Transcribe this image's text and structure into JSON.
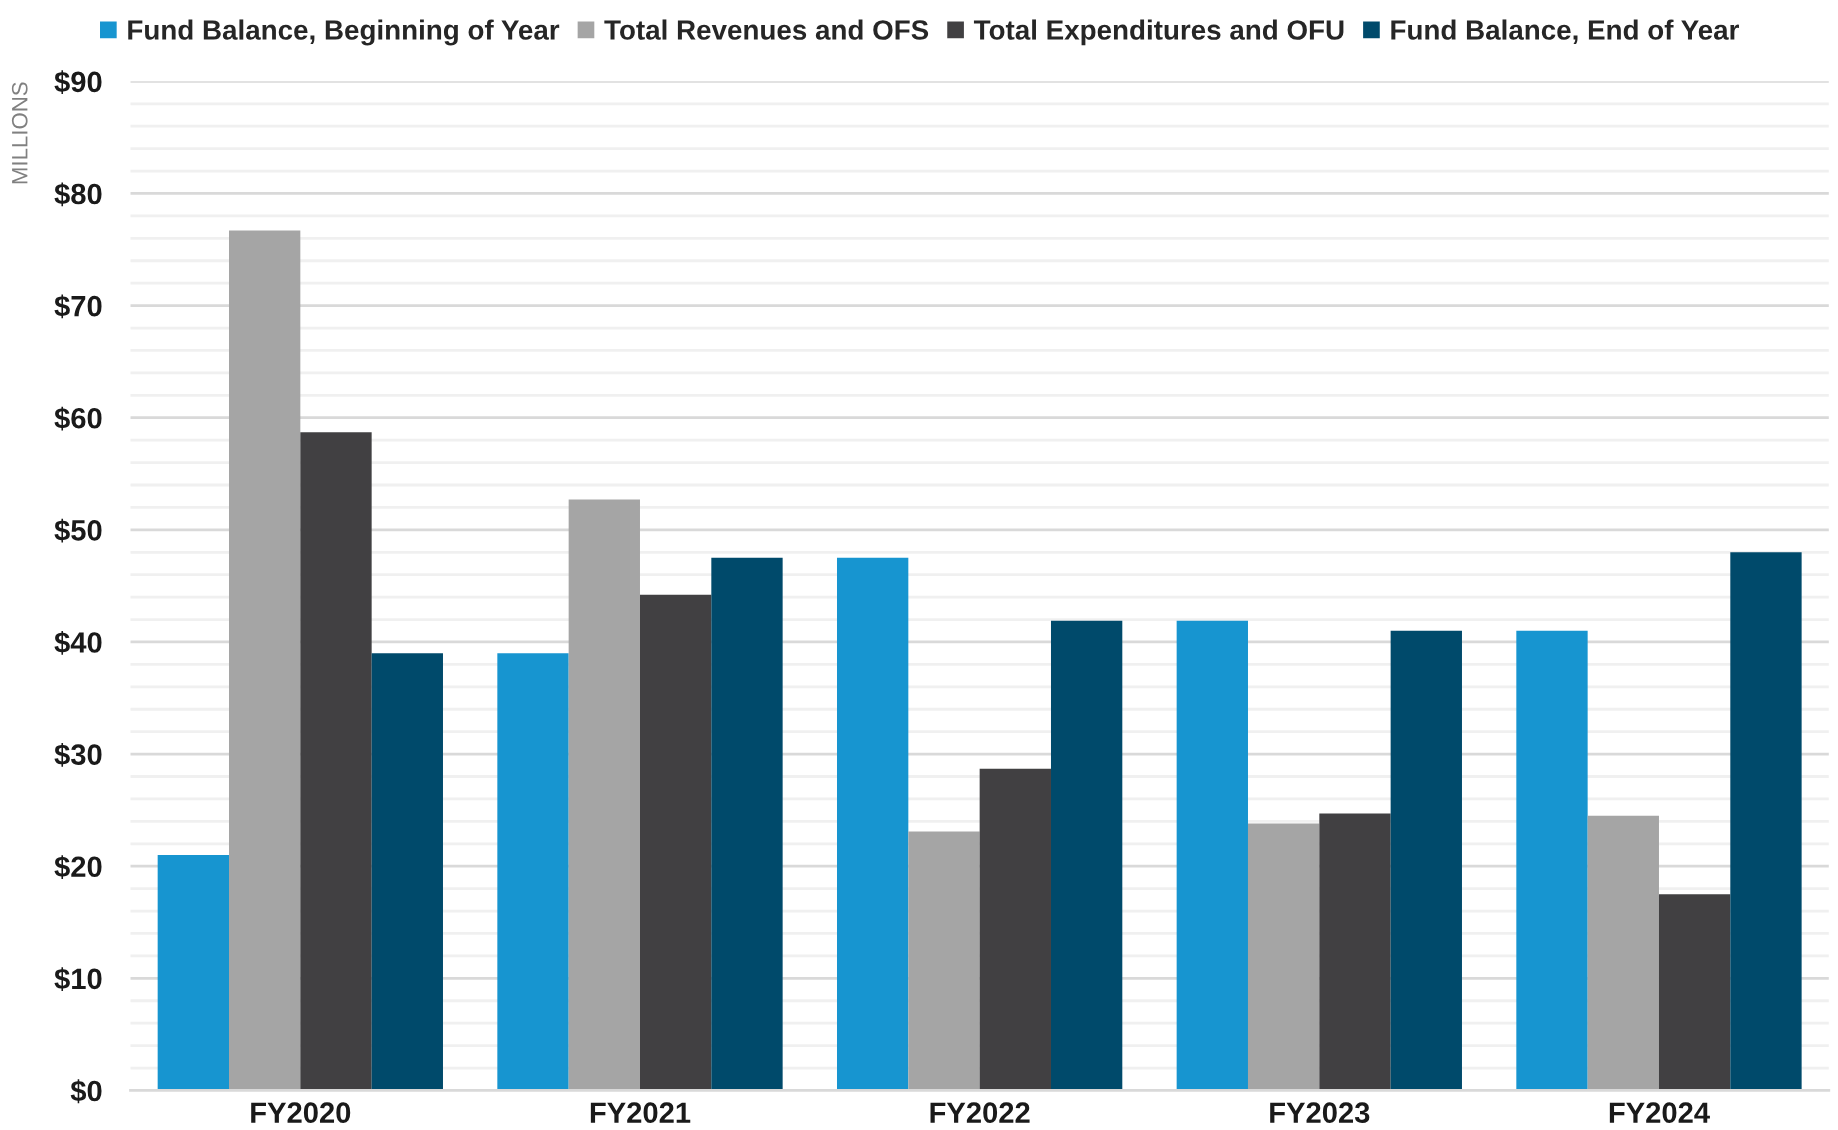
{
  "chart_data": {
    "type": "bar",
    "ylabel": "MILLIONS",
    "categories": [
      "FY2020",
      "FY2021",
      "FY2022",
      "FY2023",
      "FY2024"
    ],
    "series": [
      {
        "name": "Fund Balance, Beginning of Year",
        "color": "#1795d0",
        "values": [
          21.0,
          39.0,
          47.5,
          41.9,
          41.0
        ]
      },
      {
        "name": "Total Revenues and OFS",
        "color": "#a5a5a5",
        "values": [
          76.7,
          52.7,
          23.1,
          23.8,
          24.5
        ]
      },
      {
        "name": "Total Expenditures and OFU",
        "color": "#414042",
        "values": [
          58.7,
          44.2,
          28.7,
          24.7,
          17.5
        ]
      },
      {
        "name": "Fund Balance, End of Year",
        "color": "#004a6b",
        "values": [
          39.0,
          47.5,
          41.9,
          41.0,
          48.0
        ]
      }
    ],
    "ylim": [
      0,
      90
    ],
    "yticks": [
      {
        "value": 0,
        "label": "$0"
      },
      {
        "value": 2,
        "label": null
      },
      {
        "value": 4,
        "label": null
      },
      {
        "value": 6,
        "label": null
      },
      {
        "value": 8,
        "label": null
      },
      {
        "value": 10,
        "label": "$10"
      },
      {
        "value": 12,
        "label": null
      },
      {
        "value": 14,
        "label": null
      },
      {
        "value": 16,
        "label": null
      },
      {
        "value": 18,
        "label": null
      },
      {
        "value": 20,
        "label": "$20"
      },
      {
        "value": 22,
        "label": null
      },
      {
        "value": 24,
        "label": null
      },
      {
        "value": 26,
        "label": null
      },
      {
        "value": 28,
        "label": null
      },
      {
        "value": 30,
        "label": "$30"
      },
      {
        "value": 32,
        "label": null
      },
      {
        "value": 34,
        "label": null
      },
      {
        "value": 36,
        "label": null
      },
      {
        "value": 38,
        "label": null
      },
      {
        "value": 40,
        "label": "$40"
      },
      {
        "value": 42,
        "label": null
      },
      {
        "value": 44,
        "label": null
      },
      {
        "value": 46,
        "label": null
      },
      {
        "value": 48,
        "label": null
      },
      {
        "value": 50,
        "label": "$50"
      },
      {
        "value": 52,
        "label": null
      },
      {
        "value": 54,
        "label": null
      },
      {
        "value": 56,
        "label": null
      },
      {
        "value": 58,
        "label": null
      },
      {
        "value": 60,
        "label": "$60"
      },
      {
        "value": 62,
        "label": null
      },
      {
        "value": 64,
        "label": null
      },
      {
        "value": 66,
        "label": null
      },
      {
        "value": 68,
        "label": null
      },
      {
        "value": 70,
        "label": "$70"
      },
      {
        "value": 72,
        "label": null
      },
      {
        "value": 74,
        "label": null
      },
      {
        "value": 76,
        "label": null
      },
      {
        "value": 78,
        "label": null
      },
      {
        "value": 80,
        "label": "$80"
      },
      {
        "value": 82,
        "label": null
      },
      {
        "value": 84,
        "label": null
      },
      {
        "value": 86,
        "label": null
      },
      {
        "value": 88,
        "label": null
      },
      {
        "value": 90,
        "label": "$90"
      }
    ],
    "grid": "y",
    "legend": "top"
  }
}
